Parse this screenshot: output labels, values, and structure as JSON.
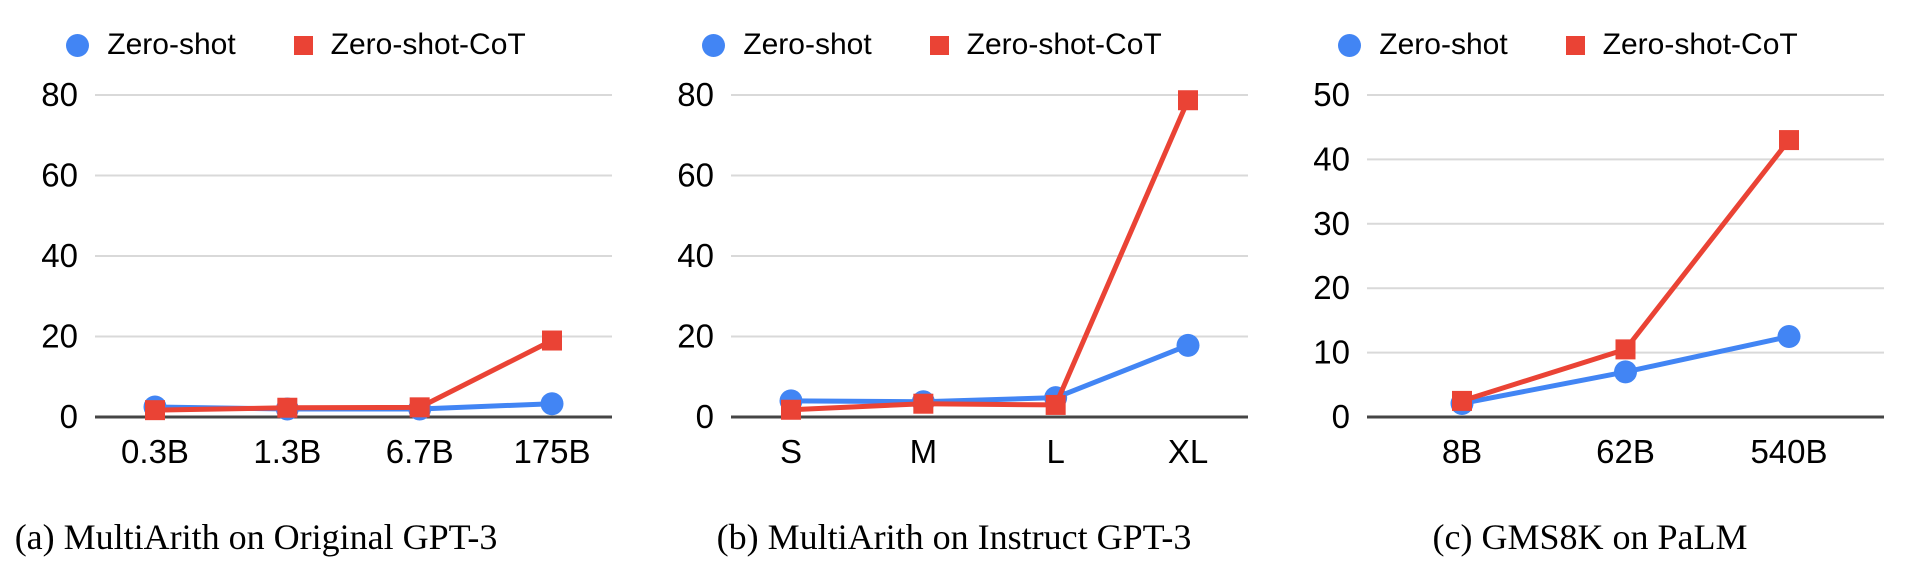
{
  "figure": {
    "background": "#ffffff",
    "series_colors": {
      "zero_shot": "#4285F4",
      "zero_shot_cot": "#EA4335"
    },
    "gridline_color": "#d9d9d9",
    "baseline_color": "#454545"
  },
  "chart_data": [
    {
      "type": "line",
      "caption": "(a) MultiArith on Original GPT-3",
      "categories": [
        "0.3B",
        "1.3B",
        "6.7B",
        "175B"
      ],
      "y_ticks": [
        0,
        20,
        40,
        60,
        80
      ],
      "ylim": [
        0,
        80
      ],
      "grid": true,
      "legend_position": "top",
      "series": [
        {
          "name": "Zero-shot",
          "marker": "circle",
          "color": "#4285F4",
          "values": [
            2.5,
            2.0,
            2.0,
            3.3
          ]
        },
        {
          "name": "Zero-shot-CoT",
          "marker": "square",
          "color": "#EA4335",
          "values": [
            1.7,
            2.3,
            2.4,
            19.0
          ]
        }
      ]
    },
    {
      "type": "line",
      "caption": "(b) MultiArith on Instruct GPT-3",
      "categories": [
        "S",
        "M",
        "L",
        "XL"
      ],
      "y_ticks": [
        0,
        20,
        40,
        60,
        80
      ],
      "ylim": [
        0,
        80
      ],
      "grid": true,
      "legend_position": "top",
      "series": [
        {
          "name": "Zero-shot",
          "marker": "circle",
          "color": "#4285F4",
          "values": [
            4.0,
            3.8,
            4.8,
            17.8
          ]
        },
        {
          "name": "Zero-shot-CoT",
          "marker": "square",
          "color": "#EA4335",
          "values": [
            1.8,
            3.3,
            3.0,
            78.7
          ]
        }
      ]
    },
    {
      "type": "line",
      "caption": "(c) GMS8K on PaLM",
      "categories": [
        "8B",
        "62B",
        "540B"
      ],
      "y_ticks": [
        0,
        10,
        20,
        30,
        40,
        50
      ],
      "ylim": [
        0,
        50
      ],
      "grid": true,
      "legend_position": "top",
      "series": [
        {
          "name": "Zero-shot",
          "marker": "circle",
          "color": "#4285F4",
          "values": [
            2.1,
            7.0,
            12.5
          ]
        },
        {
          "name": "Zero-shot-CoT",
          "marker": "square",
          "color": "#EA4335",
          "values": [
            2.5,
            10.5,
            43.0
          ]
        }
      ]
    }
  ]
}
